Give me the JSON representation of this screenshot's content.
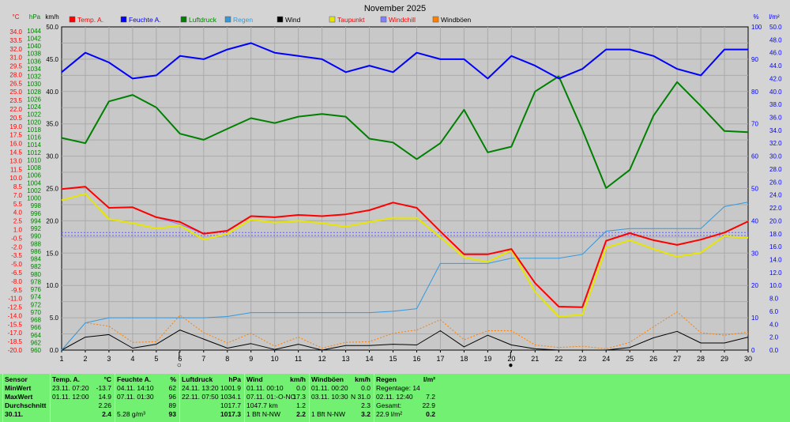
{
  "chart_data": {
    "type": "line",
    "title": "November 2025",
    "x": [
      1,
      2,
      3,
      4,
      5,
      6,
      7,
      8,
      9,
      10,
      11,
      12,
      13,
      14,
      15,
      16,
      17,
      18,
      19,
      20,
      21,
      22,
      23,
      24,
      25,
      26,
      27,
      28,
      29,
      30
    ],
    "xlim": [
      1,
      30
    ],
    "x_ticks": [
      "1",
      "2",
      "3",
      "4",
      "5",
      "6",
      "7",
      "8",
      "9",
      "10",
      "11",
      "12",
      "13",
      "14",
      "15",
      "16",
      "17",
      "18",
      "19",
      "20",
      "21",
      "22",
      "23",
      "24",
      "25",
      "26",
      "27",
      "28",
      "29",
      "30"
    ],
    "axes": {
      "temp": {
        "unit": "°C",
        "color": "#ff0000",
        "ylim": [
          -20,
          35
        ],
        "ticks": [
          "34.0",
          "33.5",
          "32.0",
          "31.0",
          "29.5",
          "28.0",
          "26.5",
          "25.0",
          "23.5",
          "22.0",
          "20.5",
          "19.0",
          "17.5",
          "16.0",
          "14.5",
          "13.0",
          "11.5",
          "10.0",
          "8.5",
          "7.0",
          "5.5",
          "4.0",
          "2.5",
          "1.0",
          "-0.5",
          "-2.0",
          "-3.5",
          "-5.0",
          "-6.5",
          "-8.0",
          "-9.5",
          "-11.0",
          "-12.5",
          "-14.0",
          "-15.5",
          "-17.0",
          "-18.5",
          "-20.0"
        ]
      },
      "pressure": {
        "unit": "hPa",
        "color": "#008000",
        "ylim": [
          960,
          1045
        ],
        "ticks": [
          "1044",
          "1042",
          "1040",
          "1038",
          "1036",
          "1034",
          "1032",
          "1030",
          "1028",
          "1026",
          "1024",
          "1022",
          "1020",
          "1018",
          "1016",
          "1014",
          "1012",
          "1010",
          "1008",
          "1006",
          "1004",
          "1002",
          "1000",
          "998",
          "996",
          "994",
          "992",
          "990",
          "988",
          "986",
          "984",
          "982",
          "980",
          "978",
          "976",
          "974",
          "972",
          "970",
          "968",
          "966",
          "964",
          "962",
          "960"
        ]
      },
      "wind": {
        "unit": "km/h",
        "color": "#000000",
        "ylim": [
          0,
          50
        ],
        "ticks": [
          "50.0",
          "45.0",
          "40.0",
          "35.0",
          "30.0",
          "25.0",
          "20.0",
          "15.0",
          "10.0",
          "5.0",
          "0.0"
        ]
      },
      "humidity": {
        "unit": "%",
        "color": "#0000ff",
        "ylim": [
          0,
          100
        ],
        "ticks": [
          "100",
          "90",
          "80",
          "70",
          "60",
          "50",
          "40",
          "30",
          "20",
          "10",
          "0"
        ]
      },
      "rain": {
        "unit": "l/m²",
        "color": "#0000ff",
        "ylim": [
          0,
          50
        ],
        "ticks": [
          "50.0",
          "48.0",
          "46.0",
          "44.0",
          "42.0",
          "40.0",
          "38.0",
          "36.0",
          "34.0",
          "32.0",
          "30.0",
          "28.0",
          "26.0",
          "24.0",
          "22.0",
          "20.0",
          "18.0",
          "16.0",
          "14.0",
          "12.0",
          "10.0",
          "8.0",
          "6.0",
          "4.0",
          "2.0",
          "0.0"
        ]
      }
    },
    "series": [
      {
        "name": "Temp. A.",
        "axis": "temp",
        "color": "#ff0000",
        "width": 2,
        "values": [
          7.4,
          7.8,
          4.2,
          4.3,
          2.6,
          1.8,
          -0.2,
          0.3,
          2.8,
          2.6,
          3.0,
          2.8,
          3.1,
          3.8,
          5.1,
          4.2,
          0.2,
          -3.7,
          -3.7,
          -2.8,
          -8.6,
          -12.6,
          -12.7,
          -1.4,
          -0.1,
          -1.3,
          -2.1,
          -1.2,
          0.0,
          1.9
        ]
      },
      {
        "name": "Feuchte A.",
        "axis": "humidity",
        "color": "#0000ff",
        "width": 2,
        "values": [
          86,
          92,
          89,
          84,
          85,
          91,
          90,
          93,
          95,
          92,
          91,
          90,
          86,
          88,
          86,
          92,
          90,
          90,
          84,
          91,
          88,
          84,
          87,
          93,
          93,
          91,
          87,
          85,
          93,
          93
        ]
      },
      {
        "name": "Luftdruck",
        "axis": "pressure",
        "color": "#008000",
        "width": 2,
        "values": [
          1015.8,
          1014.4,
          1025.4,
          1027.1,
          1023.8,
          1016.9,
          1015.3,
          1018.2,
          1021.0,
          1019.7,
          1021.4,
          1022.1,
          1021.4,
          1015.6,
          1014.6,
          1010.2,
          1014.4,
          1023.2,
          1012.0,
          1013.5,
          1028.0,
          1032.0,
          1017.9,
          1002.6,
          1007.4,
          1021.6,
          1030.5,
          1024.2,
          1017.6,
          1017.3
        ]
      },
      {
        "name": "Regen",
        "axis": "rain",
        "color": "#3399dd",
        "width": 1,
        "values": [
          0.0,
          4.2,
          5.0,
          5.0,
          5.0,
          5.0,
          5.0,
          5.2,
          5.8,
          5.8,
          5.8,
          5.8,
          5.8,
          5.8,
          6.0,
          6.4,
          13.4,
          13.4,
          13.4,
          14.2,
          14.2,
          14.2,
          14.8,
          18.4,
          18.8,
          18.8,
          18.8,
          18.8,
          22.2,
          22.9
        ]
      },
      {
        "name": "Wind",
        "axis": "wind",
        "color": "#000000",
        "width": 1,
        "values": [
          0.0,
          2.0,
          2.4,
          0.3,
          0.9,
          3.1,
          1.7,
          0.3,
          1.0,
          0.1,
          0.9,
          0.0,
          0.7,
          0.7,
          0.9,
          0.8,
          3.0,
          0.5,
          2.3,
          0.8,
          0.2,
          0.0,
          0.0,
          0.0,
          0.4,
          1.9,
          2.9,
          1.1,
          1.1,
          2.0
        ]
      },
      {
        "name": "Taupunkt",
        "axis": "temp",
        "color": "#e6e600",
        "width": 2,
        "values": [
          5.5,
          6.6,
          2.3,
          1.6,
          0.7,
          1.2,
          -1.2,
          -0.2,
          2.2,
          1.7,
          2.0,
          1.6,
          1.0,
          1.8,
          2.5,
          2.5,
          -0.8,
          -4.2,
          -5.0,
          -3.0,
          -10.1,
          -14.3,
          -14.0,
          -2.6,
          -1.3,
          -2.8,
          -4.1,
          -3.4,
          -0.6,
          -0.9
        ]
      },
      {
        "name": "Windchill",
        "axis": "temp",
        "color": "#8080ff",
        "width": 1,
        "values": [
          7.4,
          7.8,
          4.2,
          4.3,
          2.6,
          1.4,
          -0.2,
          0.3,
          2.8,
          2.6,
          3.0,
          2.8,
          3.1,
          3.8,
          5.1,
          4.2,
          0.2,
          -3.7,
          -3.7,
          -2.8,
          -8.6,
          -12.6,
          -12.7,
          -1.4,
          -0.1,
          -1.3,
          -2.1,
          -1.2,
          0.0,
          1.9
        ]
      },
      {
        "name": "Windböen",
        "axis": "wind",
        "color": "#ff8000",
        "width": 1,
        "dash": "2,2",
        "values": [
          0.0,
          4.2,
          3.7,
          1.2,
          1.3,
          5.4,
          2.7,
          1.1,
          2.6,
          0.6,
          2.0,
          0.3,
          1.2,
          1.3,
          2.6,
          3.1,
          4.7,
          1.6,
          3.0,
          3.0,
          0.8,
          0.4,
          0.6,
          0.2,
          1.2,
          3.6,
          5.9,
          2.7,
          2.3,
          2.8
        ]
      }
    ],
    "markers": [
      {
        "symbol": "○",
        "x": 6
      },
      {
        "symbol": "●",
        "x": 20
      }
    ],
    "legend_placement": "top-left",
    "grid": true
  },
  "stats": {
    "columns": [
      {
        "heading": "Sensor",
        "unit": "",
        "rows": [
          "MinWert",
          "MaxWert",
          "Durchschnitt",
          "30.11."
        ]
      },
      {
        "heading": "Temp. A.",
        "unit": "°C",
        "rows": [
          [
            "23.11.  07:20",
            "-13.7"
          ],
          [
            "01.11.  12:00",
            "14.9"
          ],
          [
            "",
            "2.26"
          ],
          [
            "",
            "2.4"
          ]
        ]
      },
      {
        "heading": "Feuchte A.",
        "unit": "%",
        "rows": [
          [
            "04.11.  14:10",
            "62"
          ],
          [
            "07.11.  01:30",
            "96"
          ],
          [
            "",
            "89"
          ],
          [
            "5.28 g/m³",
            "93"
          ]
        ]
      },
      {
        "heading": "Luftdruck",
        "unit": "hPa",
        "rows": [
          [
            "24.11.  13:20",
            "1001.9"
          ],
          [
            "22.11.  07:50",
            "1034.1"
          ],
          [
            "",
            "1017.7"
          ],
          [
            "",
            "1017.3"
          ]
        ]
      },
      {
        "heading": "Wind",
        "unit": "km/h",
        "rows": [
          [
            "01.11.  00:10",
            "0.0"
          ],
          [
            "07.11.  01:-O-NO",
            "17.3"
          ],
          [
            "1047.7 km",
            "1.2"
          ],
          [
            "1 Bft N-NW",
            "2.2"
          ]
        ]
      },
      {
        "heading": "Windböen",
        "unit": "km/h",
        "rows": [
          [
            "01.11.  00:20",
            "0.0"
          ],
          [
            "03.11.  10:30",
            "N 31.0"
          ],
          [
            "",
            "2.3"
          ],
          [
            "1 Bft N-NW",
            "3.2"
          ]
        ]
      },
      {
        "heading": "Regen",
        "unit": "l/m²",
        "rows": [
          [
            "Regentage: 14",
            ""
          ],
          [
            "02.11.  12:40",
            "7.2"
          ],
          [
            "Gesamt:",
            "22.9"
          ],
          [
            "22.9 l/m²",
            "0.2"
          ]
        ]
      }
    ]
  }
}
